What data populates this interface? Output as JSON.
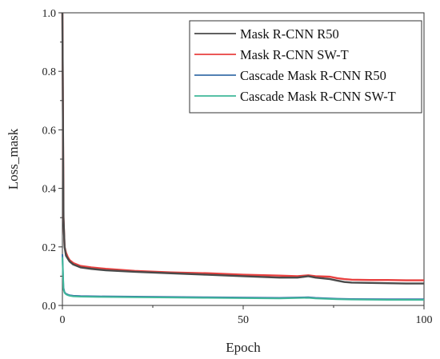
{
  "chart_data": {
    "type": "line",
    "title": "",
    "xlabel": "Epoch",
    "ylabel": "Loss_mask",
    "xlim": [
      0,
      100
    ],
    "ylim": [
      0,
      1.0
    ],
    "x_ticks": [
      "0",
      "50",
      "100"
    ],
    "y_ticks": [
      "0.0",
      "0.2",
      "0.4",
      "0.6",
      "0.8",
      "1.0"
    ],
    "grid": false,
    "legend_position": "top-right",
    "series": [
      {
        "name": "Mask R-CNN R50",
        "color": "#4a4a4a",
        "x": [
          0,
          0.3,
          0.6,
          1,
          1.5,
          2,
          3,
          5,
          8,
          12,
          20,
          30,
          40,
          50,
          60,
          65,
          68,
          70,
          74,
          76,
          78,
          80,
          85,
          90,
          95,
          100
        ],
        "y": [
          1.0,
          0.3,
          0.2,
          0.17,
          0.16,
          0.15,
          0.14,
          0.13,
          0.125,
          0.12,
          0.115,
          0.11,
          0.105,
          0.1,
          0.095,
          0.095,
          0.1,
          0.095,
          0.09,
          0.085,
          0.08,
          0.078,
          0.077,
          0.076,
          0.075,
          0.075
        ]
      },
      {
        "name": "Mask R-CNN SW-T",
        "color": "#e8403f",
        "x": [
          0,
          0.3,
          0.6,
          1,
          1.5,
          2,
          3,
          5,
          8,
          12,
          20,
          30,
          40,
          50,
          60,
          65,
          68,
          70,
          74,
          76,
          78,
          80,
          85,
          90,
          95,
          100
        ],
        "y": [
          1.0,
          0.3,
          0.2,
          0.18,
          0.165,
          0.155,
          0.145,
          0.135,
          0.13,
          0.125,
          0.118,
          0.113,
          0.11,
          0.105,
          0.102,
          0.1,
          0.103,
          0.1,
          0.098,
          0.093,
          0.09,
          0.088,
          0.087,
          0.087,
          0.086,
          0.086
        ]
      },
      {
        "name": "Cascade Mask R-CNN R50",
        "color": "#3a6fa8",
        "x": [
          0,
          0.3,
          0.6,
          1,
          1.5,
          2,
          3,
          5,
          10,
          20,
          30,
          40,
          50,
          60,
          68,
          70,
          76,
          80,
          90,
          100
        ],
        "y": [
          0.175,
          0.06,
          0.045,
          0.04,
          0.037,
          0.035,
          0.033,
          0.032,
          0.031,
          0.03,
          0.029,
          0.028,
          0.027,
          0.026,
          0.028,
          0.026,
          0.023,
          0.022,
          0.021,
          0.021
        ]
      },
      {
        "name": "Cascade Mask R-CNN SW-T",
        "color": "#3fb89a",
        "x": [
          0,
          0.3,
          0.6,
          1,
          1.5,
          2,
          3,
          5,
          10,
          20,
          30,
          40,
          50,
          60,
          68,
          70,
          76,
          80,
          90,
          100
        ],
        "y": [
          0.165,
          0.055,
          0.043,
          0.038,
          0.035,
          0.033,
          0.031,
          0.03,
          0.029,
          0.028,
          0.027,
          0.026,
          0.025,
          0.024,
          0.026,
          0.024,
          0.021,
          0.02,
          0.019,
          0.019
        ]
      }
    ]
  }
}
